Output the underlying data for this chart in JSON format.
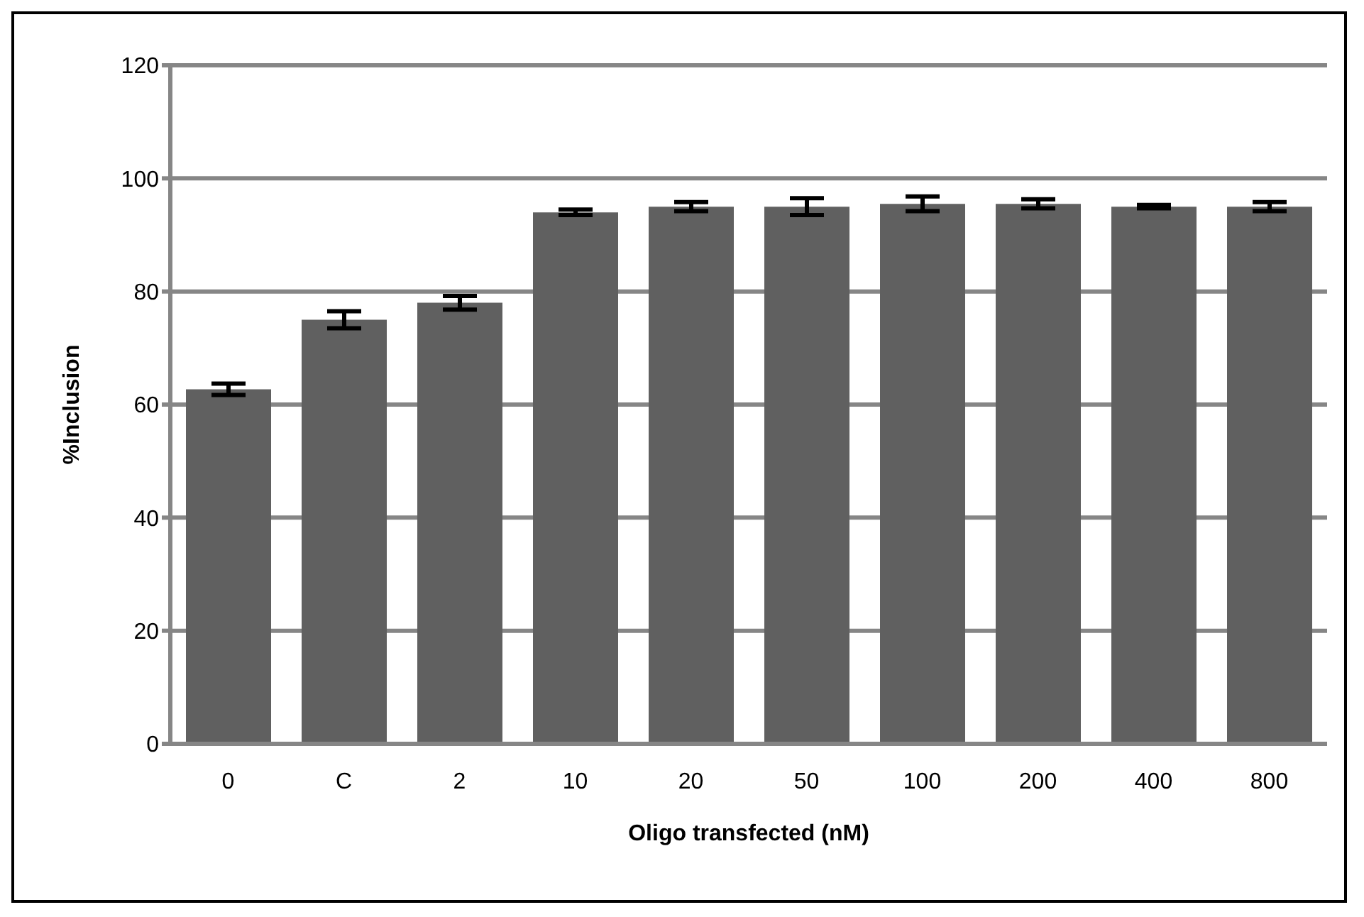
{
  "chart_data": {
    "type": "bar",
    "xlabel": "Oligo transfected (nM)",
    "ylabel": "%Inclusion",
    "categories": [
      "0",
      "C",
      "2",
      "10",
      "20",
      "50",
      "100",
      "200",
      "400",
      "800"
    ],
    "values": [
      62.7,
      75,
      78,
      94,
      95,
      95,
      95.5,
      95.5,
      95,
      95
    ],
    "errors": [
      1,
      1.5,
      1.2,
      0.5,
      0.8,
      1.5,
      1.3,
      0.8,
      0.3,
      0.8
    ],
    "color": "#606060",
    "ylim": [
      0,
      120
    ],
    "yticks": [
      0,
      20,
      40,
      60,
      80,
      100,
      120
    ],
    "grid": "y",
    "legend": false
  }
}
